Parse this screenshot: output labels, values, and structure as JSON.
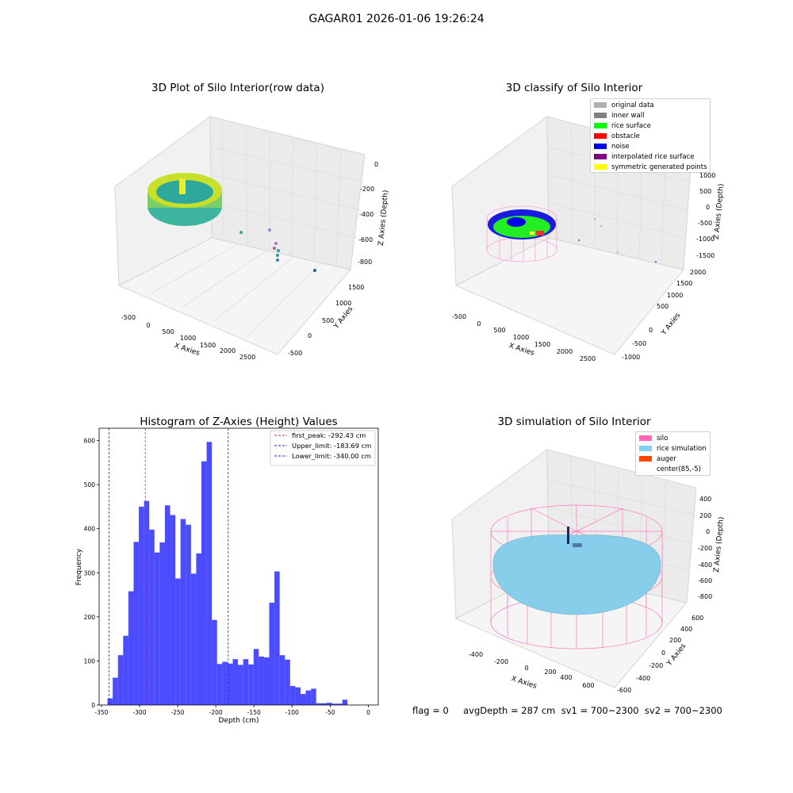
{
  "suptitle": "GAGAR01 2026-01-06 19:26:24",
  "footer": "flag = 0     avgDepth = 287 cm  sv1 = 700~2300  sv2 = 700~2300",
  "colors": {
    "bar": "#4b4bff",
    "peak": "#e03030",
    "limit": "#2020d0",
    "original": "#b0b0b0",
    "inner_wall": "#808080",
    "rice_surface": "#00ff00",
    "obstacle": "#ff0000",
    "noise": "#0000ee",
    "interp": "#800080",
    "symmetric": "#ffff00",
    "silo": "#ff69b4",
    "rice_sim": "#87ceeb",
    "auger": "#ff4500"
  },
  "plot_raw": {
    "title": "3D Plot of Silo Interior(row data)",
    "xlabel": "X Axies",
    "ylabel": "Y Axies",
    "zlabel": "Z Axies (Depth)",
    "xticks": [
      "-500",
      "0",
      "500",
      "1000",
      "1500",
      "2000",
      "2500"
    ],
    "yticks": [
      "-500",
      "0",
      "500",
      "1000",
      "1500"
    ],
    "zticks": [
      "0",
      "-200",
      "-400",
      "-600",
      "-800"
    ]
  },
  "plot_classify": {
    "title": "3D classify of Silo Interior",
    "xlabel": "X Axies",
    "ylabel": "Y Axies",
    "zlabel": "Z Axies (Depth)",
    "xticks": [
      "-500",
      "0",
      "500",
      "1000",
      "1500",
      "2000",
      "2500"
    ],
    "yticks": [
      "-1000",
      "-500",
      "0",
      "500",
      "1000",
      "1500",
      "2000"
    ],
    "zticks": [
      "1000",
      "500",
      "0",
      "-500",
      "-1000",
      "-1500"
    ],
    "legend": [
      {
        "label": "original data",
        "color": "#b0b0b0"
      },
      {
        "label": "inner wall",
        "color": "#808080"
      },
      {
        "label": "rice surface",
        "color": "#00ff00"
      },
      {
        "label": "obstacle",
        "color": "#ff0000"
      },
      {
        "label": "noise",
        "color": "#0000ee"
      },
      {
        "label": "interpolated rice surface",
        "color": "#800080"
      },
      {
        "label": "symmetric generated points",
        "color": "#ffff00"
      }
    ]
  },
  "plot_sim": {
    "title": "3D simulation of Silo Interior",
    "xlabel": "X Axies",
    "ylabel": "Y Axies",
    "zlabel": "Z Axies (Depth)",
    "xticks": [
      "-400",
      "-200",
      "0",
      "200",
      "400",
      "600"
    ],
    "yticks": [
      "-600",
      "-400",
      "-200",
      "0",
      "200",
      "400",
      "600"
    ],
    "zticks": [
      "400",
      "200",
      "0",
      "-200",
      "-400",
      "-600",
      "-800"
    ],
    "legend": [
      {
        "label": "silo",
        "color": "#ff69b4"
      },
      {
        "label": "rice simulation",
        "color": "#87ceeb"
      },
      {
        "label": "auger",
        "color": "#ff4500"
      },
      {
        "label": "center(85,-5)",
        "color": ""
      }
    ]
  },
  "chart_data": {
    "type": "bar",
    "title": "Histogram of Z-Axies (Height) Values",
    "xlabel": "Depth (cm)",
    "ylabel": "Frequency",
    "xlim": [
      -353,
      13
    ],
    "ylim": [
      0,
      628
    ],
    "xticks": [
      -350,
      -300,
      -250,
      -200,
      -150,
      -100,
      -50,
      0
    ],
    "yticks": [
      0,
      100,
      200,
      300,
      400,
      500,
      600
    ],
    "bin_start": -342,
    "bin_width": 6.84,
    "values": [
      15,
      62,
      113,
      157,
      258,
      370,
      450,
      463,
      398,
      346,
      369,
      453,
      431,
      287,
      422,
      409,
      298,
      344,
      553,
      597,
      193,
      93,
      98,
      94,
      104,
      91,
      104,
      92,
      127,
      110,
      108,
      232,
      303,
      113,
      103,
      43,
      40,
      25,
      33,
      37,
      4,
      4,
      5,
      3,
      3,
      12
    ],
    "vlines": [
      {
        "name": "first_peak: -292.43 cm",
        "x": -292.43,
        "color": "#e03030"
      },
      {
        "name": "Upper_limit: -183.69 cm",
        "x": -183.69,
        "color": "#2020d0"
      },
      {
        "name": "Lower_limit: -340.00 cm",
        "x": -340.0,
        "color": "#2020d0"
      }
    ]
  }
}
